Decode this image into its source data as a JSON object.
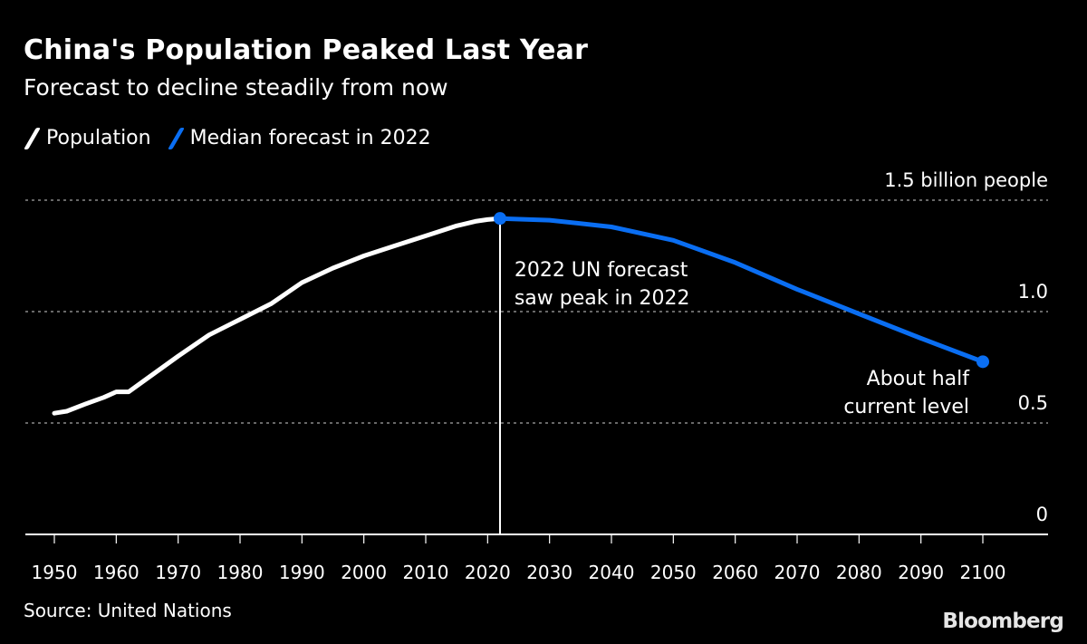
{
  "header": {
    "title": "China's Population Peaked Last Year",
    "subtitle": "Forecast to decline steadily from now"
  },
  "legend": [
    {
      "label": "Population",
      "color": "#ffffff"
    },
    {
      "label": "Median forecast in 2022",
      "color": "#0a6ef2"
    }
  ],
  "footer": {
    "source": "Source: United Nations",
    "brand": "Bloomberg"
  },
  "chart_data": {
    "type": "line",
    "title": "China's Population Peaked Last Year",
    "subtitle": "Forecast to decline steadily from now",
    "xlabel": "",
    "ylabel": "billion people",
    "xlim": [
      1950,
      2100
    ],
    "ylim": [
      0,
      1.5
    ],
    "grid": true,
    "legend_position": "top-left",
    "x_ticks": [
      1950,
      1960,
      1970,
      1980,
      1990,
      2000,
      2010,
      2020,
      2030,
      2040,
      2050,
      2060,
      2070,
      2080,
      2090,
      2100
    ],
    "y_ticks": [
      {
        "value": 0,
        "label": "0"
      },
      {
        "value": 0.5,
        "label": "0.5"
      },
      {
        "value": 1.0,
        "label": "1.0"
      },
      {
        "value": 1.5,
        "label": "1.5 billion people"
      }
    ],
    "series": [
      {
        "name": "Population",
        "color": "#ffffff",
        "x": [
          1950,
          1952,
          1955,
          1958,
          1960,
          1961,
          1962,
          1965,
          1970,
          1975,
          1980,
          1985,
          1990,
          1995,
          2000,
          2005,
          2010,
          2015,
          2018,
          2020,
          2022
        ],
        "y": [
          0.544,
          0.553,
          0.585,
          0.615,
          0.64,
          0.64,
          0.64,
          0.7,
          0.8,
          0.895,
          0.965,
          1.035,
          1.13,
          1.195,
          1.25,
          1.295,
          1.34,
          1.385,
          1.405,
          1.413,
          1.418
        ]
      },
      {
        "name": "Median forecast in 2022",
        "color": "#0a6ef2",
        "x": [
          2022,
          2030,
          2040,
          2050,
          2060,
          2070,
          2080,
          2090,
          2100
        ],
        "y": [
          1.418,
          1.41,
          1.38,
          1.32,
          1.22,
          1.1,
          0.99,
          0.88,
          0.775
        ]
      }
    ],
    "markers": [
      {
        "series": "Median forecast in 2022",
        "x": 2022,
        "y": 1.418
      },
      {
        "series": "Median forecast in 2022",
        "x": 2100,
        "y": 0.775
      }
    ],
    "reference_lines": [
      {
        "axis": "x",
        "value": 2022
      }
    ],
    "annotations": [
      {
        "text_lines": [
          "2022 UN forecast",
          "saw peak in 2022"
        ],
        "anchor_x": 2023,
        "anchor_y": 1.2
      },
      {
        "text_lines": [
          "About half",
          "current level"
        ],
        "anchor_x": 2100,
        "anchor_y": 0.6
      }
    ]
  }
}
